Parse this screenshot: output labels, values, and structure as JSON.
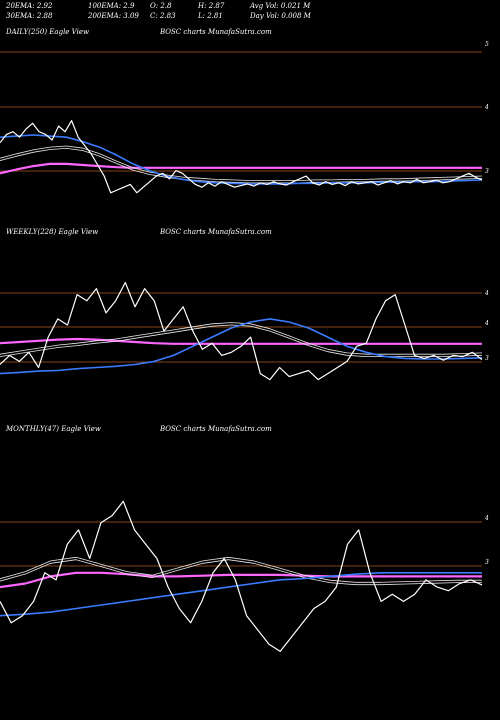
{
  "header": {
    "ema20": "20EMA: 2.92",
    "ema100": "100EMA: 2.9",
    "open": "O: 2.8",
    "high": "H: 2.87",
    "avgvol": "Avg Vol: 0.021 M",
    "ema30": "30EMA: 2.88",
    "ema200": "200EMA: 3.09",
    "close": "C: 2.83",
    "low": "L: 2.81",
    "dayvol": "Day Vol: 0.008  M"
  },
  "colors": {
    "background": "#000000",
    "price": "#ffffff",
    "short_ema": "#3a7bff",
    "long_ema": "#ff66ff",
    "mid_ema": "#e8e8e8",
    "grid": "#b05a1a"
  },
  "chart_data": [
    {
      "type": "line",
      "panel_label": "DAILY(250) Eagle  View",
      "title": "BOSC charts MunafaSutra.com",
      "y_ticks": [
        "5",
        "4",
        "3"
      ],
      "ylim": [
        2.2,
        5.35
      ],
      "series": [
        {
          "key": "price",
          "values": [
            3.5,
            3.65,
            3.7,
            3.6,
            3.75,
            3.85,
            3.7,
            3.65,
            3.55,
            3.8,
            3.7,
            3.9,
            3.6,
            3.45,
            3.3,
            3.1,
            2.9,
            2.6,
            2.65,
            2.7,
            2.75,
            2.6,
            2.7,
            2.8,
            2.9,
            2.95,
            2.85,
            3.0,
            2.95,
            2.85,
            2.75,
            2.7,
            2.78,
            2.72,
            2.8,
            2.75,
            2.7,
            2.73,
            2.76,
            2.72,
            2.78,
            2.75,
            2.8,
            2.76,
            2.74,
            2.8,
            2.85,
            2.9,
            2.78,
            2.74,
            2.8,
            2.75,
            2.78,
            2.73,
            2.8,
            2.76,
            2.78,
            2.8,
            2.74,
            2.78,
            2.82,
            2.76,
            2.8,
            2.78,
            2.84,
            2.78,
            2.8,
            2.83,
            2.78,
            2.8,
            2.85,
            2.9,
            2.95,
            2.88,
            2.83
          ]
        },
        {
          "key": "short_ema",
          "values": [
            3.6,
            3.62,
            3.64,
            3.62,
            3.6,
            3.52,
            3.42,
            3.28,
            3.12,
            3.0,
            2.9,
            2.84,
            2.8,
            2.78,
            2.77,
            2.76,
            2.76,
            2.76,
            2.77,
            2.77,
            2.78,
            2.78,
            2.78,
            2.79,
            2.79,
            2.8,
            2.8,
            2.81,
            2.82,
            2.83
          ]
        },
        {
          "key": "mid_ema",
          "values": [
            3.2,
            3.28,
            3.35,
            3.4,
            3.42,
            3.38,
            3.28,
            3.15,
            3.03,
            2.95,
            2.9,
            2.86,
            2.84,
            2.82,
            2.81,
            2.8,
            2.8,
            2.8,
            2.8,
            2.81,
            2.81,
            2.82,
            2.82,
            2.83,
            2.83,
            2.84,
            2.85,
            2.86,
            2.87,
            2.88
          ]
        },
        {
          "key": "long_ema",
          "values": [
            2.95,
            3.02,
            3.08,
            3.12,
            3.12,
            3.1,
            3.08,
            3.06,
            3.05,
            3.05,
            3.05,
            3.05,
            3.05,
            3.05,
            3.05,
            3.05,
            3.05,
            3.05,
            3.05,
            3.05,
            3.05,
            3.05,
            3.05,
            3.05,
            3.05,
            3.05,
            3.05,
            3.05,
            3.05,
            3.05
          ]
        }
      ]
    },
    {
      "type": "line",
      "panel_label": "WEEKLY(228) Eagle  View",
      "title": "BOSC charts MunafaSutra.com",
      "y_ticks": [
        "4",
        "4",
        "3"
      ],
      "ylim": [
        2.0,
        4.8
      ],
      "series": [
        {
          "key": "price",
          "values": [
            2.75,
            2.9,
            2.8,
            2.95,
            2.7,
            3.2,
            3.5,
            3.4,
            3.9,
            3.8,
            4.0,
            3.6,
            3.8,
            4.1,
            3.7,
            4.0,
            3.8,
            3.3,
            3.5,
            3.7,
            3.3,
            3.0,
            3.1,
            2.9,
            2.95,
            3.05,
            3.2,
            2.6,
            2.5,
            2.7,
            2.55,
            2.6,
            2.65,
            2.5,
            2.6,
            2.7,
            2.8,
            3.05,
            3.1,
            3.5,
            3.8,
            3.9,
            3.4,
            2.9,
            2.85,
            2.9,
            2.82,
            2.9,
            2.88,
            2.95,
            2.83
          ]
        },
        {
          "key": "short_ema",
          "values": [
            2.6,
            2.62,
            2.64,
            2.65,
            2.68,
            2.7,
            2.72,
            2.75,
            2.8,
            2.9,
            3.05,
            3.2,
            3.35,
            3.45,
            3.5,
            3.45,
            3.35,
            3.2,
            3.05,
            2.95,
            2.88,
            2.85,
            2.84,
            2.84,
            2.85,
            2.86
          ]
        },
        {
          "key": "mid_ema",
          "values": [
            2.9,
            2.95,
            3.0,
            3.05,
            3.08,
            3.12,
            3.15,
            3.2,
            3.25,
            3.3,
            3.35,
            3.4,
            3.42,
            3.4,
            3.32,
            3.2,
            3.08,
            2.98,
            2.92,
            2.9,
            2.9,
            2.9,
            2.9,
            2.9,
            2.91,
            2.92
          ]
        },
        {
          "key": "long_ema",
          "values": [
            3.1,
            3.12,
            3.14,
            3.16,
            3.17,
            3.16,
            3.14,
            3.12,
            3.1,
            3.09,
            3.09,
            3.09,
            3.09,
            3.09,
            3.09,
            3.09,
            3.09,
            3.09,
            3.09,
            3.09,
            3.09,
            3.09,
            3.09,
            3.09,
            3.09,
            3.09
          ]
        }
      ]
    },
    {
      "type": "line",
      "panel_label": "MONTHLY(47) Eagle  View",
      "title": "BOSC charts MunafaSutra.com",
      "y_ticks": [
        "4",
        "3"
      ],
      "ylim": [
        1.5,
        4.9
      ],
      "series": [
        {
          "key": "price",
          "values": [
            2.6,
            2.3,
            2.4,
            2.6,
            3.0,
            2.9,
            3.4,
            3.6,
            3.2,
            3.7,
            3.8,
            4.0,
            3.6,
            3.4,
            3.2,
            2.8,
            2.5,
            2.3,
            2.6,
            3.0,
            3.2,
            2.9,
            2.4,
            2.2,
            2.0,
            1.9,
            2.1,
            2.3,
            2.5,
            2.6,
            2.8,
            3.4,
            3.6,
            3.0,
            2.6,
            2.7,
            2.6,
            2.7,
            2.9,
            2.8,
            2.75,
            2.85,
            2.9,
            2.83
          ]
        },
        {
          "key": "short_ema",
          "values": [
            2.4,
            2.42,
            2.45,
            2.5,
            2.55,
            2.6,
            2.65,
            2.7,
            2.75,
            2.8,
            2.85,
            2.9,
            2.92,
            2.95,
            2.98,
            3.0,
            3.0,
            3.0,
            3.0,
            3.0
          ]
        },
        {
          "key": "mid_ema",
          "values": [
            2.9,
            3.0,
            3.15,
            3.2,
            3.1,
            3.0,
            2.95,
            3.05,
            3.15,
            3.2,
            3.15,
            3.05,
            2.95,
            2.88,
            2.85,
            2.85,
            2.86,
            2.87,
            2.88,
            2.88
          ]
        },
        {
          "key": "long_ema",
          "values": [
            2.8,
            2.85,
            2.95,
            3.0,
            3.0,
            2.98,
            2.95,
            2.95,
            2.96,
            2.97,
            2.97,
            2.97,
            2.96,
            2.95,
            2.95,
            2.95,
            2.95,
            2.95,
            2.95,
            2.95
          ]
        }
      ]
    }
  ]
}
